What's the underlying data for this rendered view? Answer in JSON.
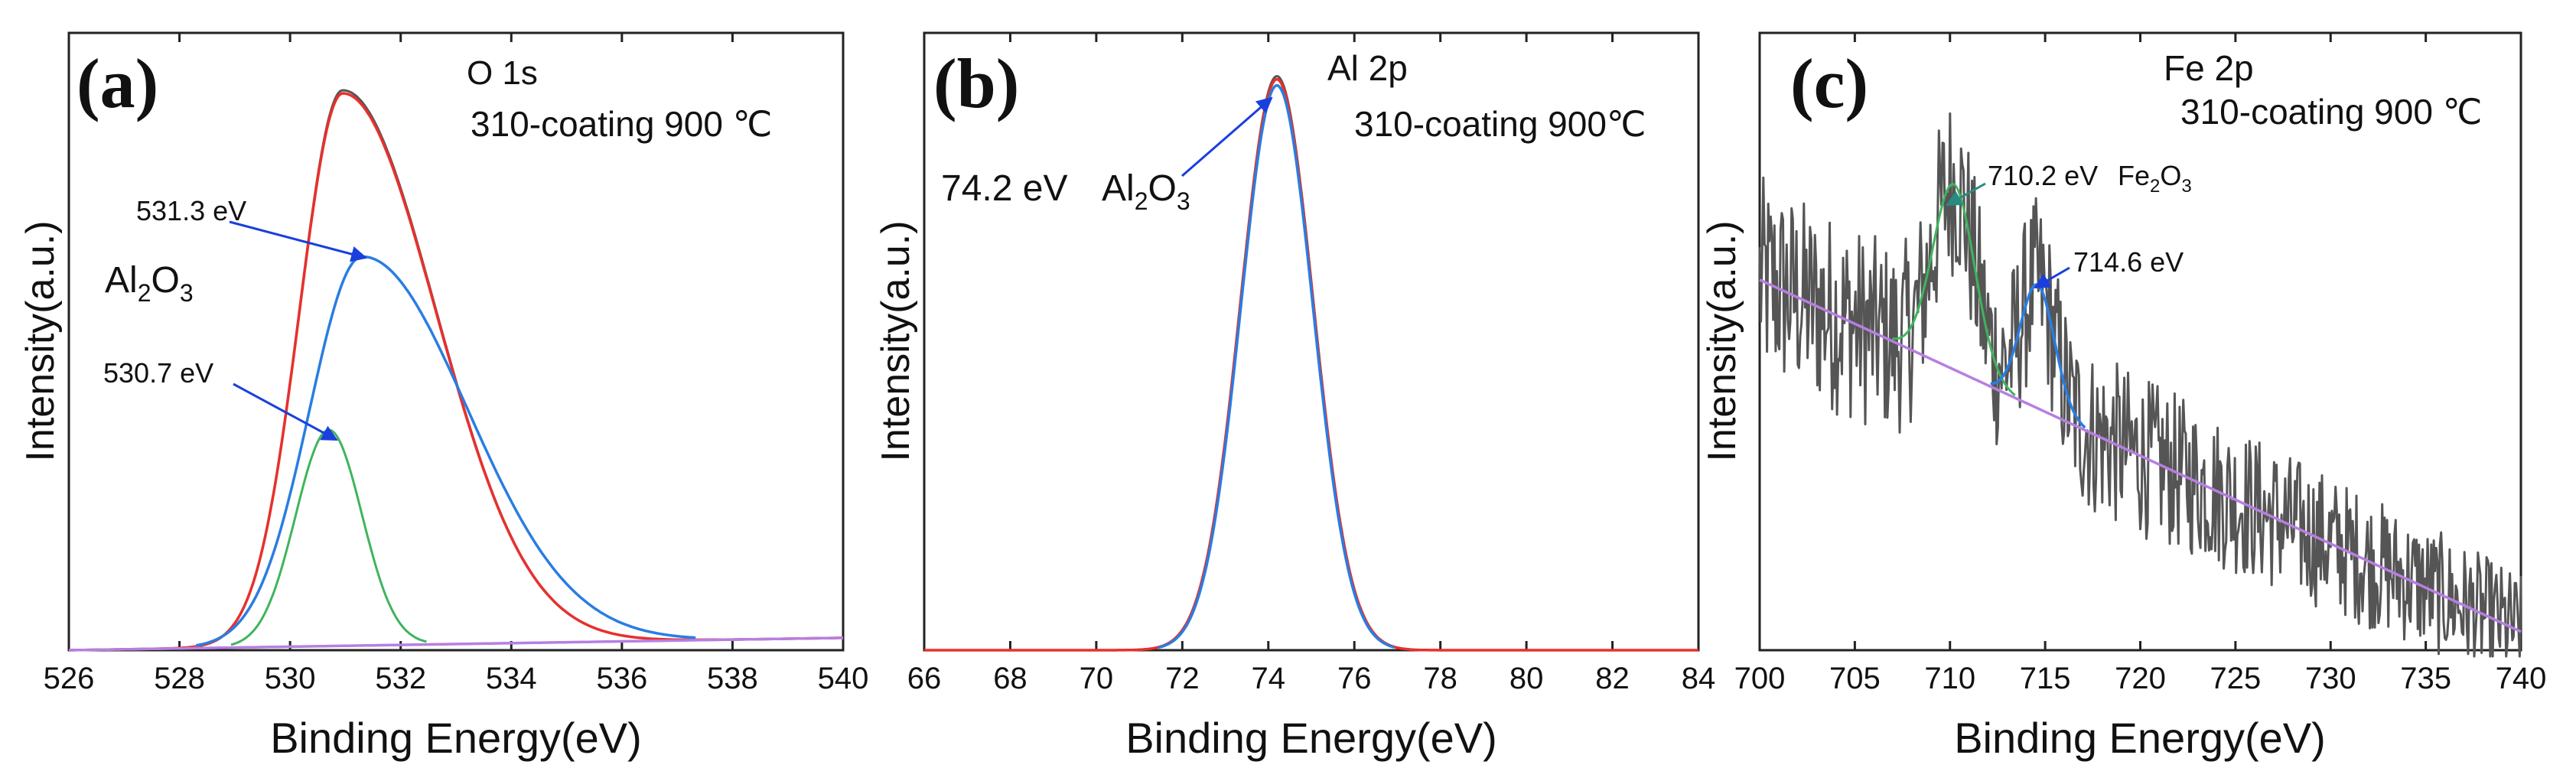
{
  "colors": {
    "raw": "#555555",
    "envelope": "#e8302c",
    "peak_blue": "#2a7de1",
    "peak_green": "#3fb45c",
    "background": "#b77fe0",
    "arrow_blue": "#1a3fdd",
    "arrow_teal": "#2a8a82"
  },
  "chart_data": [
    {
      "type": "line",
      "panel_label": "(a)",
      "title": "O 1s",
      "subtitle": "310-coating 900 ℃",
      "xlabel": "Binding Energy(eV)",
      "ylabel": "Intensity(a.u.)",
      "xlim": [
        526,
        540
      ],
      "ylim": [
        0,
        1.0
      ],
      "xticks": [
        "526",
        "528",
        "530",
        "532",
        "534",
        "536",
        "538",
        "540"
      ],
      "grid": false,
      "series": [
        {
          "name": "raw",
          "role": "raw",
          "peaks": [
            {
              "center": 530.95,
              "height": 0.9,
              "sigma": 0.78,
              "tail": 1.15
            }
          ],
          "background": {
            "start": 0.0,
            "end": 0.02
          }
        },
        {
          "name": "envelope",
          "role": "envelope",
          "peaks": [
            {
              "center": 530.95,
              "height": 0.895,
              "sigma": 0.78,
              "tail": 1.15
            }
          ],
          "background": {
            "start": 0.0,
            "end": 0.02
          }
        },
        {
          "name": "531.3 eV",
          "role": "peak_blue",
          "peaks": [
            {
              "center": 531.3,
              "height": 0.63,
              "sigma": 0.95,
              "tail": 1.0
            }
          ],
          "background": {
            "start": 0.0,
            "end": 0.02
          }
        },
        {
          "name": "530.7 eV",
          "role": "peak_green",
          "peaks": [
            {
              "center": 530.7,
              "height": 0.35,
              "sigma": 0.6,
              "tail": 0
            }
          ],
          "background": {
            "start": 0.0,
            "end": 0.02
          }
        },
        {
          "name": "background",
          "role": "background",
          "peaks": [],
          "background": {
            "start": 0.0,
            "end": 0.02
          }
        }
      ],
      "annotations": [
        {
          "id": "peak-531",
          "text": "531.3 eV",
          "x": 531.3,
          "y": 0.63
        },
        {
          "id": "peak-530",
          "text": "530.7 eV",
          "x": 530.7,
          "y": 0.35
        }
      ],
      "species": {
        "base": "Al",
        "sub1": "2",
        "mid": "O",
        "sub2": "3"
      }
    },
    {
      "type": "line",
      "panel_label": "(b)",
      "title": "Al 2p",
      "subtitle": "310-coating 900℃",
      "xlabel": "Binding Energy(eV)",
      "ylabel": "Intensity(a.u.)",
      "xlim": [
        66,
        84
      ],
      "ylim": [
        0,
        1.0
      ],
      "xticks": [
        "66",
        "68",
        "70",
        "72",
        "74",
        "76",
        "78",
        "80",
        "82",
        "84"
      ],
      "grid": false,
      "series": [
        {
          "name": "raw",
          "role": "raw",
          "peaks": [
            {
              "center": 74.2,
              "height": 0.93,
              "sigma": 0.85,
              "tail": 0
            }
          ],
          "background": {
            "start": 0.0,
            "end": 0.0
          }
        },
        {
          "name": "envelope",
          "role": "envelope",
          "peaks": [
            {
              "center": 74.2,
              "height": 0.925,
              "sigma": 0.85,
              "tail": 0
            }
          ],
          "background": {
            "start": 0.0,
            "end": 0.0
          }
        },
        {
          "name": "74.2 eV",
          "role": "peak_blue",
          "peaks": [
            {
              "center": 74.2,
              "height": 0.915,
              "sigma": 0.84,
              "tail": 0
            }
          ],
          "background": {
            "start": 0.0,
            "end": 0.0
          }
        }
      ],
      "annotations": [
        {
          "id": "peak-742",
          "text": "74.2 eV",
          "x": 74.2,
          "y": 0.92
        }
      ],
      "species": {
        "base": "Al",
        "sub1": "2",
        "mid": "O",
        "sub2": "3"
      }
    },
    {
      "type": "line",
      "panel_label": "(c)",
      "title": "Fe 2p",
      "subtitle": "310-coating 900 ℃",
      "xlabel": "Binding Energy(eV)",
      "ylabel": "Intensity(a.u.)",
      "xlim": [
        700,
        740
      ],
      "ylim": [
        0,
        1.0
      ],
      "xticks": [
        "700",
        "705",
        "710",
        "715",
        "720",
        "725",
        "730",
        "735",
        "740"
      ],
      "grid": false,
      "series": [
        {
          "name": "raw",
          "role": "raw",
          "noisy": true,
          "peaks": [
            {
              "center": 710.2,
              "height": 0.3,
              "sigma": 1.1,
              "tail": 0
            },
            {
              "center": 714.6,
              "height": 0.2,
              "sigma": 0.9,
              "tail": 0
            }
          ],
          "background": {
            "start": 0.6,
            "end": 0.03
          }
        },
        {
          "name": "710.2 eV",
          "role": "peak_green",
          "peaks": [
            {
              "center": 710.2,
              "height": 0.3,
              "sigma": 1.1,
              "tail": 0
            }
          ],
          "background": {
            "start": 0.6,
            "end": 0.03
          }
        },
        {
          "name": "714.6 eV",
          "role": "peak_blue",
          "peaks": [
            {
              "center": 714.6,
              "height": 0.2,
              "sigma": 0.9,
              "tail": 0
            }
          ],
          "background": {
            "start": 0.6,
            "end": 0.03
          }
        },
        {
          "name": "background",
          "role": "background",
          "peaks": [],
          "background": {
            "start": 0.6,
            "end": 0.03
          }
        }
      ],
      "annotations": [
        {
          "id": "peak-710",
          "text": "710.2 eV",
          "x": 710.2,
          "y": 0.9
        },
        {
          "id": "peak-714",
          "text": "714.6 eV",
          "x": 714.6,
          "y": 0.62
        }
      ],
      "species": {
        "base": "Fe",
        "sub1": "2",
        "mid": "O",
        "sub2": "3"
      }
    }
  ]
}
